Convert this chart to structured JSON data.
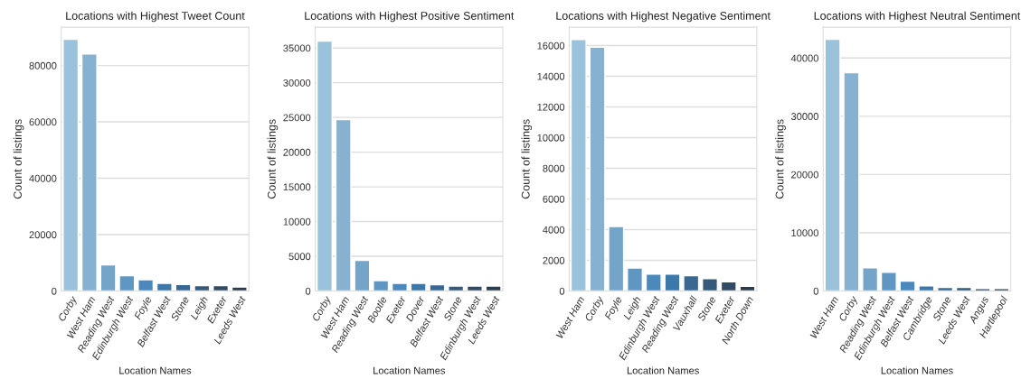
{
  "chart_data": [
    {
      "type": "bar",
      "title": "Locations with Highest Tweet Count",
      "xlabel": "Location Names",
      "ylabel": "Count of listings",
      "grid": "y",
      "categories": [
        "Corby",
        "West Ham",
        "Reading West",
        "Edinburgh West",
        "Foyle",
        "Belfast West",
        "Stone",
        "Leigh",
        "Exeter",
        "Leeds West"
      ],
      "values": [
        89300,
        84100,
        9300,
        5400,
        4000,
        2700,
        2300,
        1900,
        1900,
        1400
      ],
      "colors": [
        "#9ac2da",
        "#86b1d0",
        "#74a5c8",
        "#5f97c2",
        "#4b88bb",
        "#3d78ab",
        "#3a6891",
        "#355a7a",
        "#304b63",
        "#2c3c4c"
      ],
      "ylim": [
        0,
        93600
      ],
      "yticks": [
        0,
        20000,
        40000,
        60000,
        80000
      ]
    },
    {
      "type": "bar",
      "title": "Locations with Highest Positive Sentiment",
      "xlabel": "Location Names",
      "ylabel": "Count of listings",
      "grid": "y",
      "categories": [
        "Corby",
        "West Ham",
        "Reading West",
        "Bootle",
        "Exeter",
        "Dover",
        "Belfast West",
        "Stone",
        "Edinburgh West",
        "Leeds West"
      ],
      "values": [
        36000,
        24700,
        4400,
        1500,
        1100,
        1100,
        900,
        700,
        700,
        700
      ],
      "colors": [
        "#9ac2da",
        "#86b1d0",
        "#74a5c8",
        "#5f97c2",
        "#4b88bb",
        "#3d78ab",
        "#3a6891",
        "#355a7a",
        "#304b63",
        "#2c3c4c"
      ],
      "ylim": [
        0,
        38000
      ],
      "yticks": [
        0,
        5000,
        10000,
        15000,
        20000,
        25000,
        30000,
        35000
      ]
    },
    {
      "type": "bar",
      "title": "Locations with Highest Negative Sentiment",
      "xlabel": "Location Names",
      "ylabel": "Count of listings",
      "grid": "y",
      "categories": [
        "West Ham",
        "Corby",
        "Foyle",
        "Leigh",
        "Edinburgh West",
        "Reading West",
        "Vauxhall",
        "Stone",
        "Exeter",
        "North Down"
      ],
      "values": [
        16400,
        15900,
        4200,
        1500,
        1100,
        1100,
        1000,
        800,
        600,
        300
      ],
      "colors": [
        "#9ac2da",
        "#86b1d0",
        "#74a5c8",
        "#5f97c2",
        "#4b88bb",
        "#3d78ab",
        "#3a6891",
        "#355a7a",
        "#304b63",
        "#2c3c4c"
      ],
      "ylim": [
        0,
        17200
      ],
      "yticks": [
        0,
        2000,
        4000,
        6000,
        8000,
        10000,
        12000,
        14000,
        16000
      ]
    },
    {
      "type": "bar",
      "title": "Locations with Highest Neutral Sentiment",
      "xlabel": "Location Names",
      "ylabel": "Count of listings",
      "grid": "y",
      "categories": [
        "West Ham",
        "Corby",
        "Reading West",
        "Edinburgh West",
        "Belfast West",
        "Cambridge",
        "Stone",
        "Leeds West",
        "Angus",
        "Hartlepool"
      ],
      "values": [
        43200,
        37500,
        4000,
        3200,
        1700,
        900,
        600,
        600,
        400,
        400
      ],
      "colors": [
        "#9ac2da",
        "#86b1d0",
        "#74a5c8",
        "#5f97c2",
        "#4b88bb",
        "#3d78ab",
        "#3a6891",
        "#355a7a",
        "#304b63",
        "#2c3c4c"
      ],
      "ylim": [
        0,
        45300
      ],
      "yticks": [
        0,
        10000,
        20000,
        30000,
        40000
      ]
    }
  ]
}
